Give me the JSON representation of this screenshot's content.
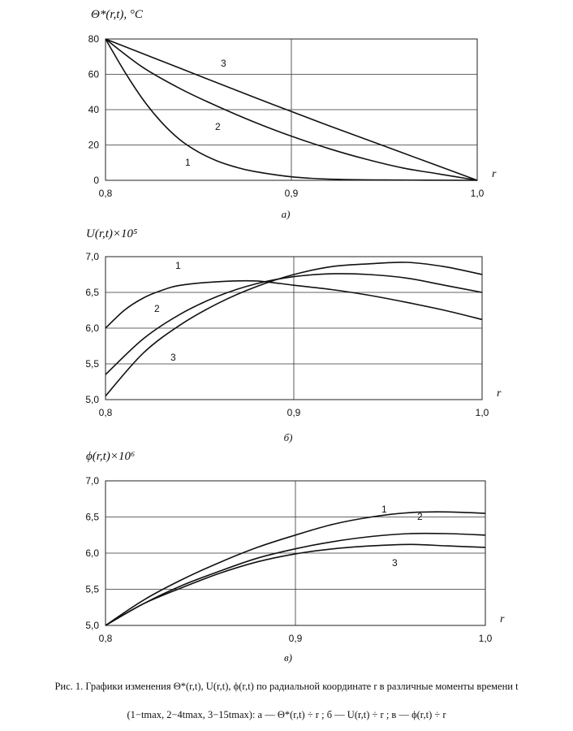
{
  "chart_data": [
    {
      "type": "line",
      "ylabel": "Θ*(r,t), °C",
      "xlabel": "r",
      "subtitle": "а)",
      "xlim": [
        0.8,
        1.0
      ],
      "ylim": [
        0,
        80
      ],
      "xticks": [
        "0,8",
        "0,9",
        "1,0"
      ],
      "yticks": [
        "0",
        "20",
        "40",
        "60",
        "80"
      ],
      "xtick_values": [
        0.8,
        0.9,
        1.0
      ],
      "ytick_values": [
        0,
        20,
        40,
        60,
        80
      ],
      "grid": true,
      "series": [
        {
          "name": "1",
          "x": [
            0.8,
            0.81,
            0.82,
            0.83,
            0.84,
            0.85,
            0.86,
            0.87,
            0.88,
            0.9,
            0.92,
            0.95,
            1.0
          ],
          "y": [
            80,
            62,
            46,
            33,
            23,
            16,
            11,
            7.5,
            5,
            2,
            0.7,
            0.2,
            0
          ]
        },
        {
          "name": "2",
          "x": [
            0.8,
            0.82,
            0.84,
            0.86,
            0.88,
            0.9,
            0.92,
            0.94,
            0.96,
            0.98,
            1.0
          ],
          "y": [
            80,
            64,
            52,
            42,
            33,
            25,
            18,
            12,
            7,
            3.5,
            0
          ]
        },
        {
          "name": "3",
          "x": [
            0.8,
            0.84,
            0.88,
            0.9,
            0.92,
            0.96,
            1.0
          ],
          "y": [
            80,
            63.5,
            47,
            39,
            31,
            15.5,
            0
          ]
        }
      ]
    },
    {
      "type": "line",
      "ylabel": "U(r,t)×10⁵",
      "xlabel": "r",
      "subtitle": "б)",
      "xlim": [
        0.8,
        1.0
      ],
      "ylim": [
        5.0,
        7.0
      ],
      "xticks": [
        "0,8",
        "0,9",
        "1,0"
      ],
      "yticks": [
        "5,0",
        "5,5",
        "6,0",
        "6,5",
        "7,0"
      ],
      "xtick_values": [
        0.8,
        0.9,
        1.0
      ],
      "ytick_values": [
        5.0,
        5.5,
        6.0,
        6.5,
        7.0
      ],
      "grid": true,
      "series": [
        {
          "name": "1",
          "x": [
            0.8,
            0.81,
            0.82,
            0.83,
            0.84,
            0.86,
            0.88,
            0.9,
            0.92,
            0.94,
            0.96,
            0.98,
            1.0
          ],
          "y": [
            6.0,
            6.25,
            6.42,
            6.53,
            6.6,
            6.65,
            6.66,
            6.6,
            6.54,
            6.46,
            6.36,
            6.25,
            6.12
          ]
        },
        {
          "name": "2",
          "x": [
            0.8,
            0.82,
            0.84,
            0.86,
            0.88,
            0.9,
            0.92,
            0.94,
            0.96,
            0.98,
            1.0
          ],
          "y": [
            5.35,
            5.85,
            6.2,
            6.45,
            6.62,
            6.72,
            6.76,
            6.75,
            6.7,
            6.6,
            6.5
          ]
        },
        {
          "name": "3",
          "x": [
            0.8,
            0.82,
            0.84,
            0.86,
            0.88,
            0.9,
            0.92,
            0.94,
            0.96,
            0.98,
            1.0
          ],
          "y": [
            5.05,
            5.65,
            6.05,
            6.35,
            6.58,
            6.75,
            6.86,
            6.9,
            6.92,
            6.86,
            6.75
          ]
        }
      ]
    },
    {
      "type": "line",
      "ylabel": "ϕ(r,t)×10⁶",
      "xlabel": "r",
      "subtitle": "в)",
      "xlim": [
        0.8,
        1.0
      ],
      "ylim": [
        5.0,
        7.0
      ],
      "xticks": [
        "0,8",
        "0,9",
        "1,0"
      ],
      "yticks": [
        "5,0",
        "5,5",
        "6,0",
        "6,5",
        "7,0"
      ],
      "xtick_values": [
        0.8,
        0.9,
        1.0
      ],
      "ytick_values": [
        5.0,
        5.5,
        6.0,
        6.5,
        7.0
      ],
      "grid": true,
      "series": [
        {
          "name": "1",
          "x": [
            0.8,
            0.82,
            0.84,
            0.86,
            0.88,
            0.9,
            0.92,
            0.94,
            0.96,
            0.98,
            1.0
          ],
          "y": [
            5.0,
            5.35,
            5.63,
            5.87,
            6.08,
            6.25,
            6.4,
            6.5,
            6.56,
            6.57,
            6.55
          ]
        },
        {
          "name": "2",
          "x": [
            0.8,
            0.82,
            0.84,
            0.86,
            0.88,
            0.9,
            0.92,
            0.94,
            0.96,
            0.98,
            1.0
          ],
          "y": [
            5.0,
            5.3,
            5.55,
            5.75,
            5.93,
            6.06,
            6.16,
            6.23,
            6.27,
            6.27,
            6.25
          ]
        },
        {
          "name": "3",
          "x": [
            0.8,
            0.82,
            0.84,
            0.86,
            0.88,
            0.9,
            0.92,
            0.94,
            0.96,
            0.98,
            1.0
          ],
          "y": [
            5.0,
            5.3,
            5.52,
            5.72,
            5.88,
            5.99,
            6.06,
            6.1,
            6.12,
            6.1,
            6.08
          ]
        }
      ]
    }
  ],
  "caption": {
    "line1": "Рис. 1. Графики изменения Θ*(r,t), U(r,t), ϕ(r,t) по радиальной координате r в различные моменты времени t",
    "line2": "(1−tmax, 2−4tmax, 3−15tmax): а — Θ*(r,t) ÷ r ; б — U(r,t) ÷ r ; в — ϕ(r,t) ÷ r"
  }
}
